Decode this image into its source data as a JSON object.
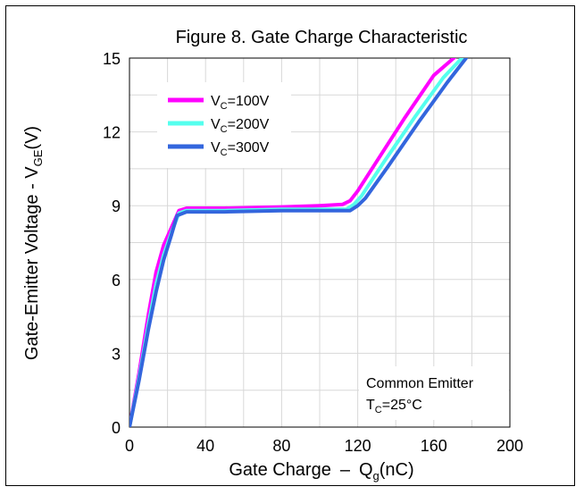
{
  "chart_data": {
    "type": "line",
    "title": "Figure 8. Gate Charge Characteristic",
    "xlabel": {
      "main": "Gate Charge",
      "dash": "–",
      "sym": "Q",
      "sub": "g",
      "unit": "(nC)"
    },
    "ylabel": {
      "main": "Gate-Emitter Voltage - V",
      "sub": "GE",
      "unit": "(V)"
    },
    "xlim": [
      0,
      200
    ],
    "ylim": [
      0,
      15
    ],
    "xticks": [
      "0",
      "40",
      "80",
      "120",
      "160",
      "200"
    ],
    "yticks": [
      "0",
      "3",
      "6",
      "9",
      "12",
      "15"
    ],
    "grid": true,
    "legend_position": "top-left",
    "annotation": {
      "line1": "Common Emitter",
      "line2": {
        "sym": "T",
        "sub": "C",
        "rest": "=25°C"
      }
    },
    "series": [
      {
        "name": "VC=100V",
        "legend": {
          "sym": "V",
          "sub": "C",
          "rest": "=100V"
        },
        "color": "#ff00ff",
        "x": [
          0,
          5,
          10,
          14,
          18,
          22,
          26,
          30,
          50,
          80,
          100,
          112,
          116,
          120,
          130,
          145,
          160,
          172
        ],
        "y": [
          0,
          2.2,
          4.6,
          6.3,
          7.4,
          8.1,
          8.8,
          8.9,
          8.9,
          8.95,
          9.0,
          9.05,
          9.2,
          9.6,
          10.8,
          12.6,
          14.3,
          15.1
        ]
      },
      {
        "name": "VC=200V",
        "legend": {
          "sym": "V",
          "sub": "C",
          "rest": "=200V"
        },
        "color": "#55ffee",
        "x": [
          0,
          5,
          10,
          14,
          18,
          22,
          26,
          30,
          50,
          80,
          100,
          114,
          118,
          122,
          134,
          150,
          165,
          176
        ],
        "y": [
          0,
          2.0,
          4.2,
          5.8,
          7.0,
          7.9,
          8.7,
          8.8,
          8.8,
          8.85,
          8.85,
          8.85,
          9.05,
          9.4,
          10.8,
          12.6,
          14.2,
          15.1
        ]
      },
      {
        "name": "VC=300V",
        "legend": {
          "sym": "V",
          "sub": "C",
          "rest": "=300V"
        },
        "color": "#3366dd",
        "x": [
          0,
          5,
          10,
          14,
          18,
          22,
          25,
          30,
          50,
          80,
          100,
          116,
          120,
          124,
          136,
          152,
          167,
          177
        ],
        "y": [
          0,
          1.9,
          4.0,
          5.5,
          6.8,
          7.8,
          8.6,
          8.75,
          8.75,
          8.8,
          8.8,
          8.8,
          9.0,
          9.3,
          10.6,
          12.4,
          14.0,
          15.0
        ]
      }
    ]
  }
}
